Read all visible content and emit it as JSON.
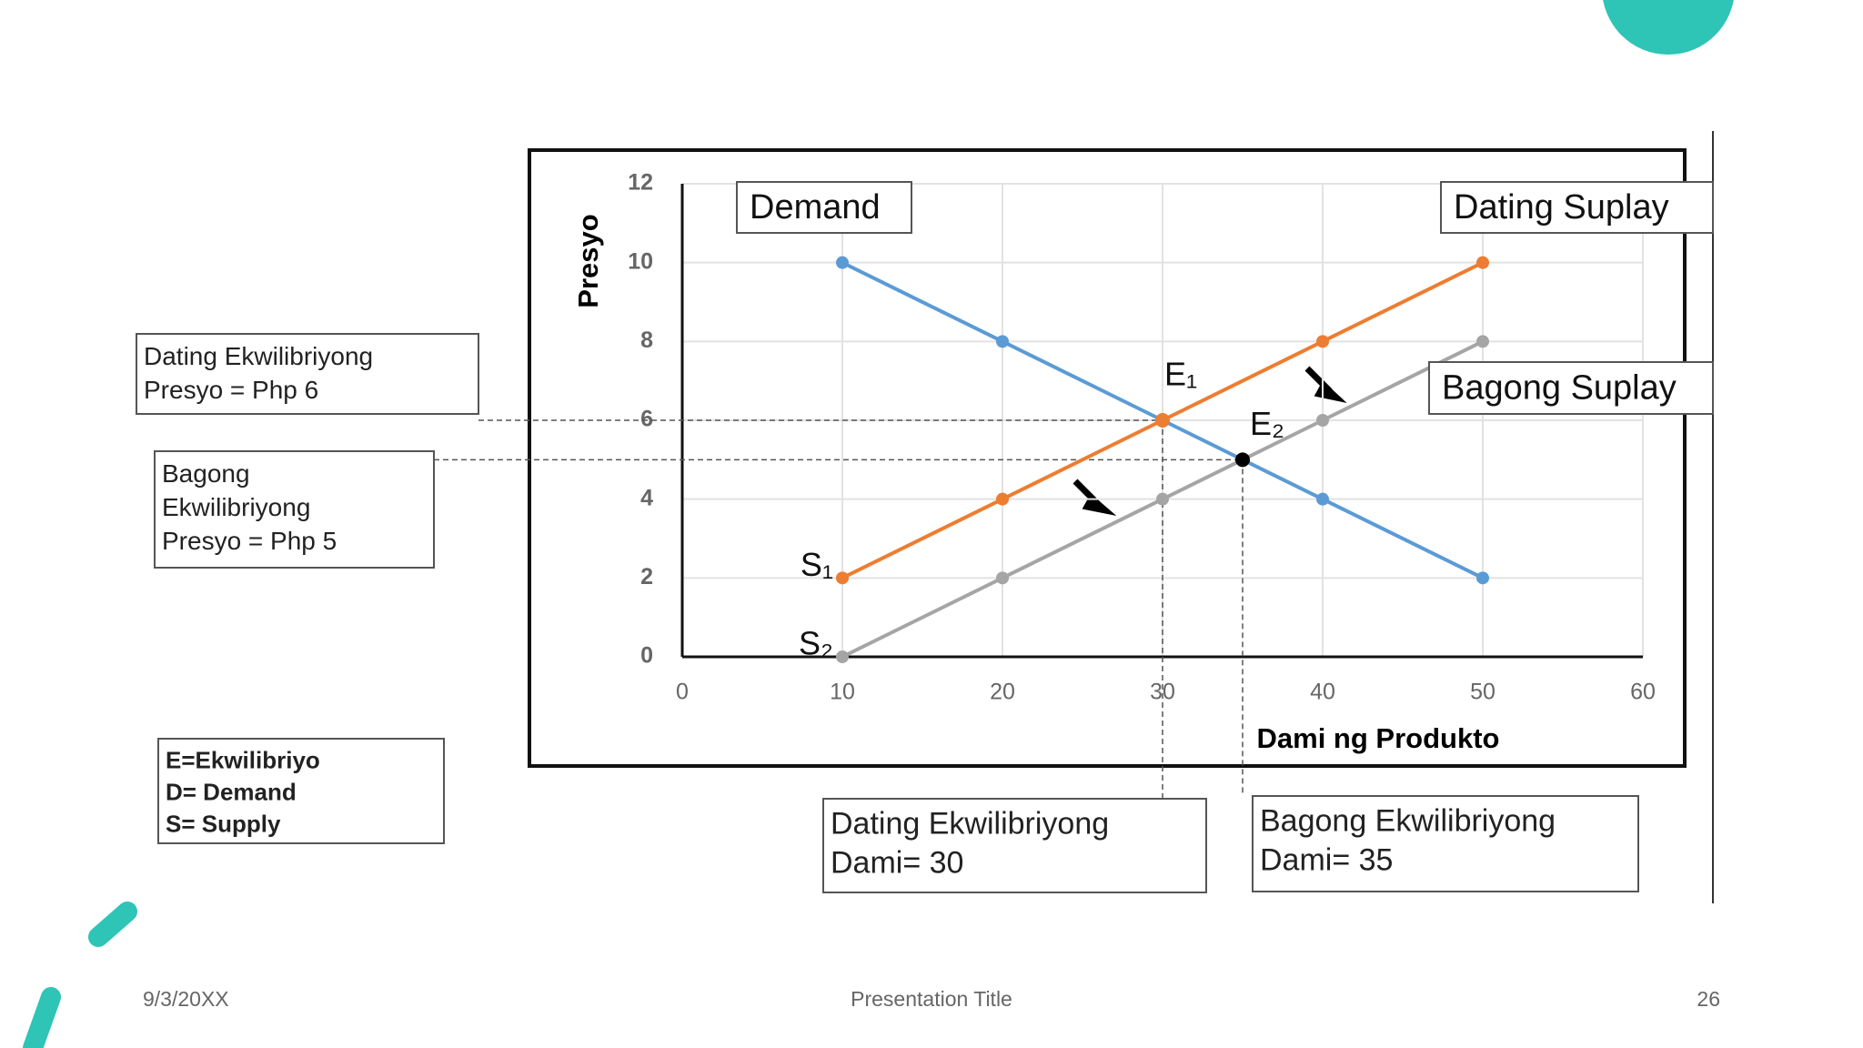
{
  "chart_data": {
    "type": "line",
    "x": [
      10,
      20,
      30,
      40,
      50
    ],
    "series": [
      {
        "name": "Demand",
        "color": "#5b9bd5",
        "values": [
          10,
          8,
          6,
          4,
          2
        ]
      },
      {
        "name": "Dating Suplay",
        "label": "S₁",
        "color": "#ed7d31",
        "values": [
          2,
          4,
          6,
          8,
          10
        ]
      },
      {
        "name": "Bagong Suplay",
        "label": "S₂",
        "color": "#a5a5a5",
        "values": [
          0,
          2,
          4,
          6,
          8
        ]
      }
    ],
    "points": [
      {
        "label": "E₁",
        "x": 30,
        "y": 6,
        "color": "#ed7d31"
      },
      {
        "label": "E₂",
        "x": 35,
        "y": 5,
        "color": "#000000"
      }
    ],
    "xlabel": "Dami ng Produkto",
    "ylabel": "Presyo",
    "xlim": [
      0,
      60
    ],
    "xticks": [
      0,
      10,
      20,
      30,
      40,
      50,
      60
    ],
    "ylim": [
      0,
      12
    ],
    "yticks": [
      0,
      2,
      4,
      6,
      8,
      10,
      12
    ],
    "grid": true,
    "annotations": {
      "old_price": [
        "Dating Ekwilibriyong",
        "Presyo =   Php 6"
      ],
      "new_price": [
        "Bagong",
        "Ekwilibriyong",
        "Presyo =   Php 5"
      ],
      "key": [
        "E=Ekwilibriyo",
        "D= Demand",
        "S= Supply"
      ],
      "old_quantity": [
        "Dating Ekwilibriyong",
        "Dami=  30"
      ],
      "new_quantity": [
        "Bagong Ekwilibriyong",
        "Dami=  35"
      ]
    }
  },
  "footer": {
    "date": "9/3/20XX",
    "title": "Presentation Title",
    "page": "26"
  }
}
